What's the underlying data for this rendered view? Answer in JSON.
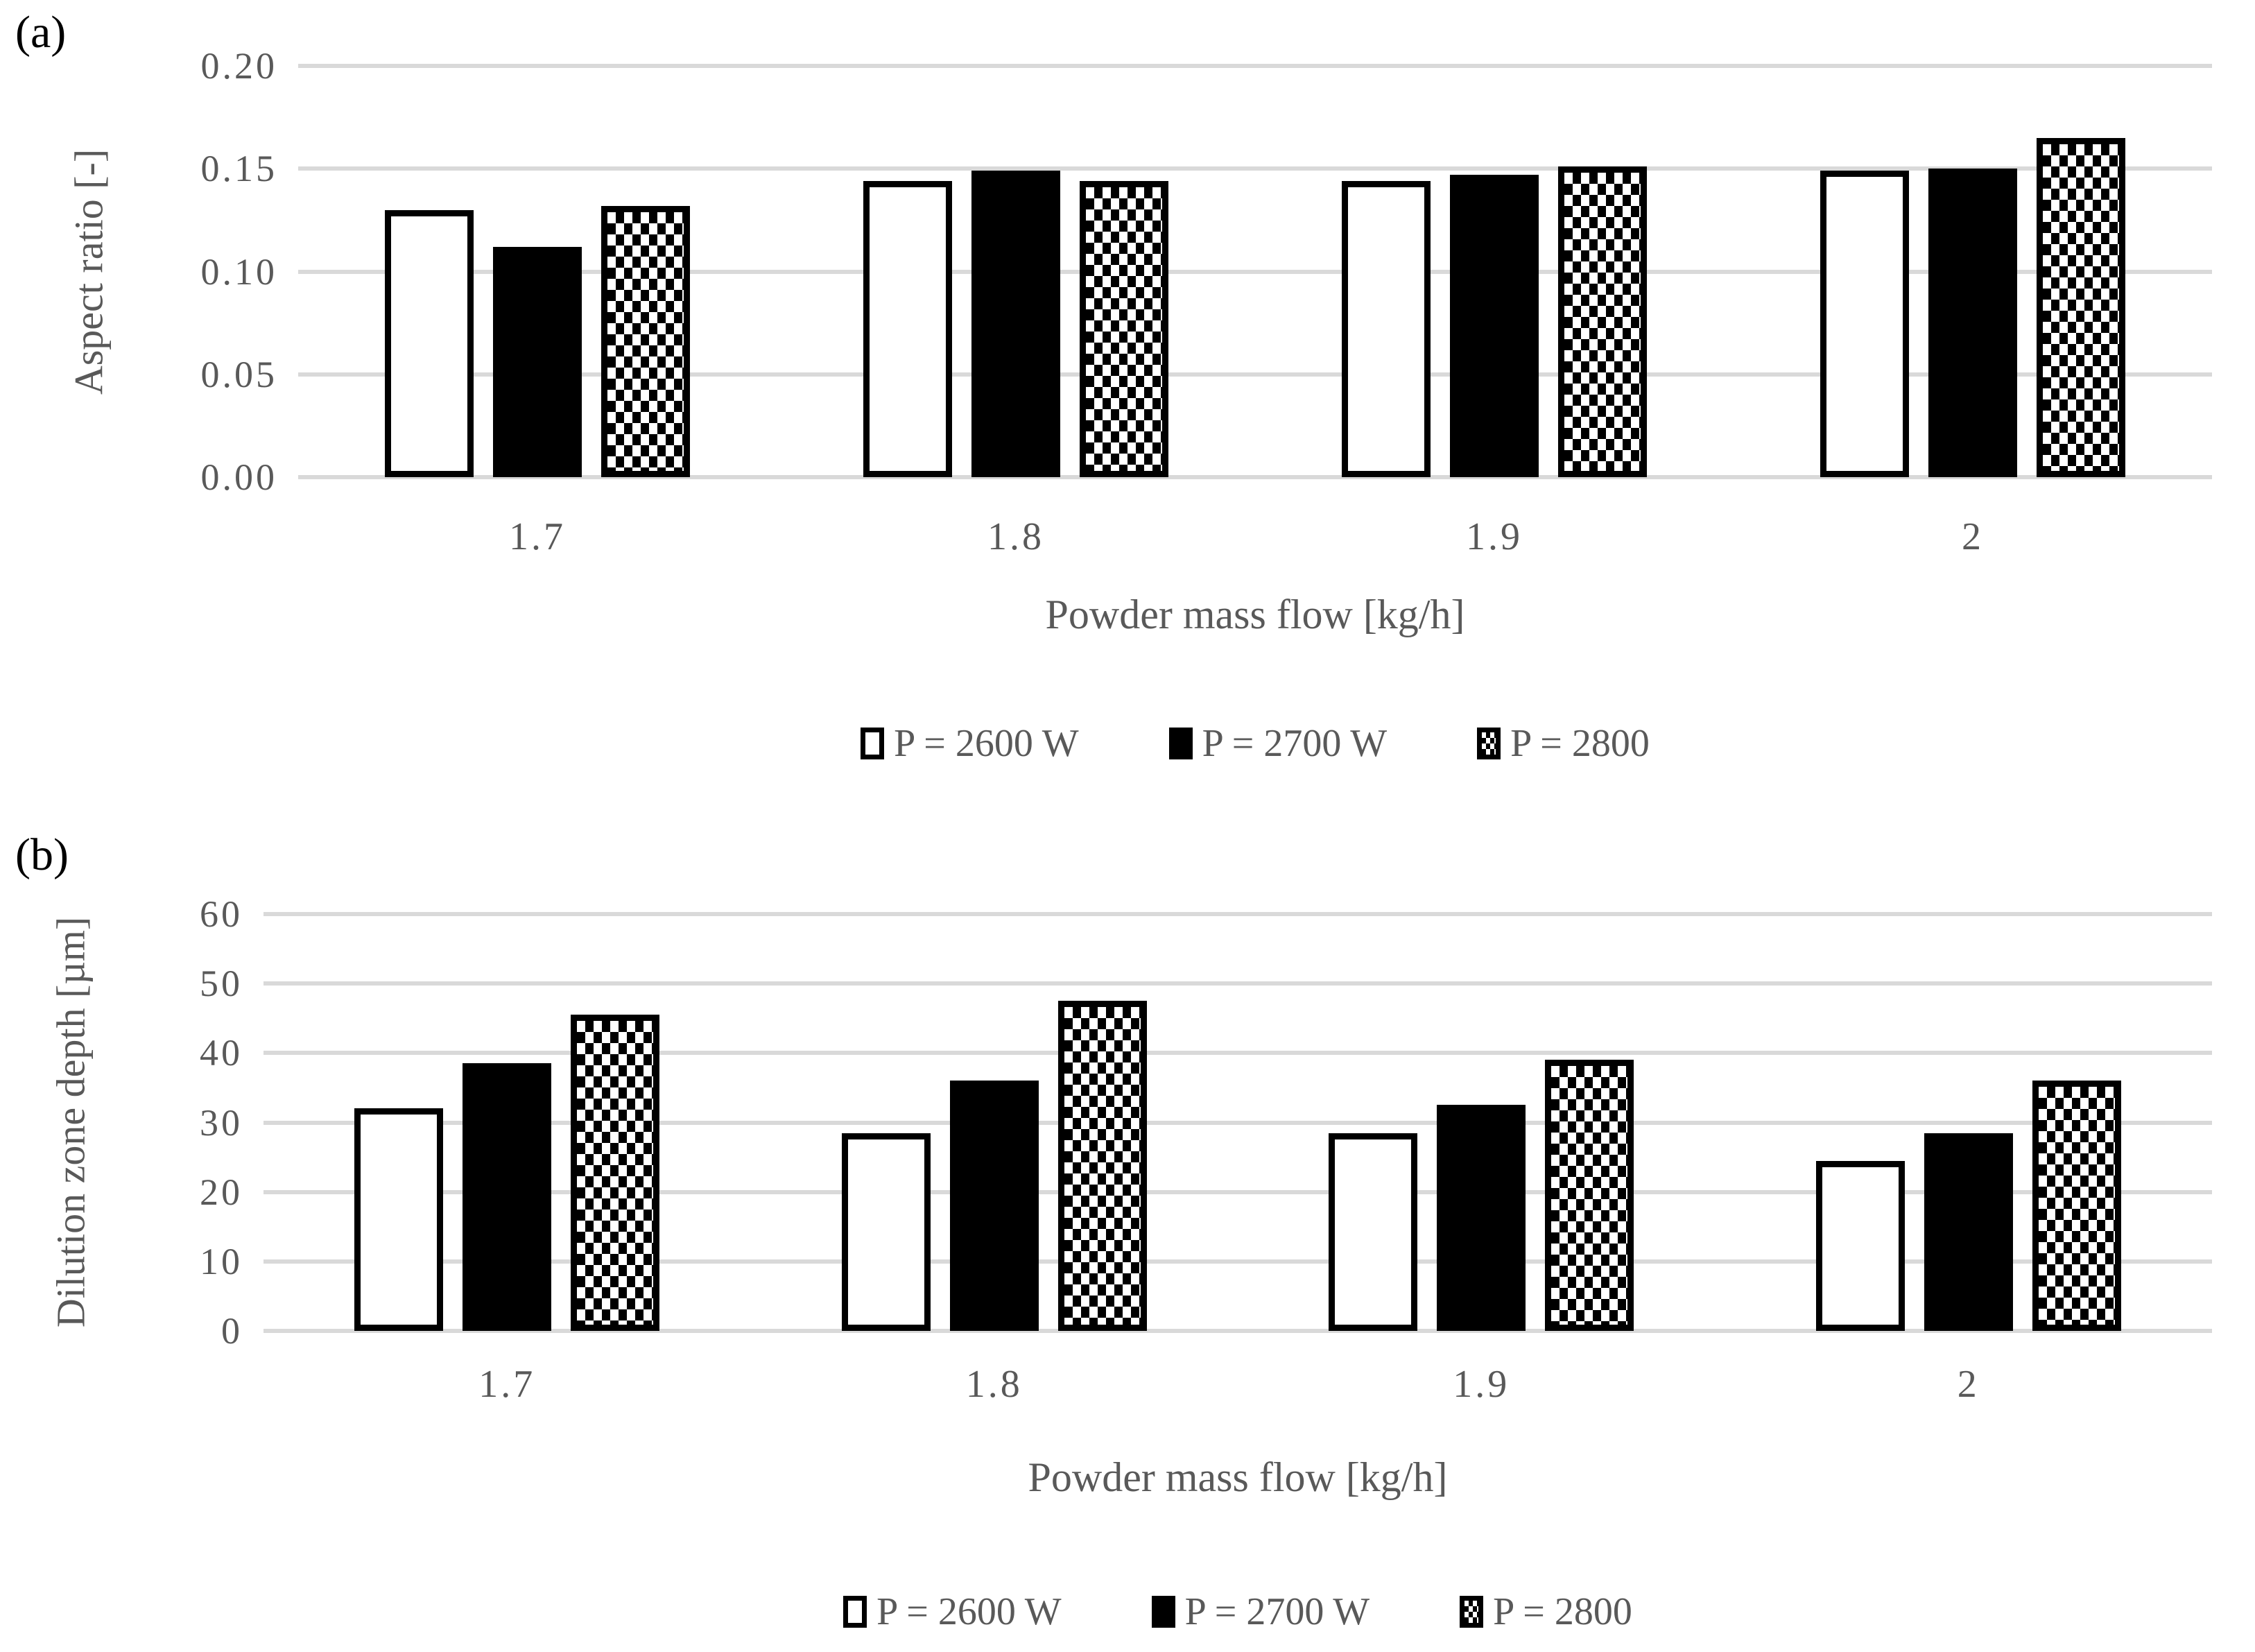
{
  "colors": {
    "text_gray": "#595959",
    "gridline_gray": "#d9d9d9",
    "bar_black": "#000000",
    "bar_white_fill": "#ffffff",
    "bar_border": "#000000"
  },
  "chart_data": [
    {
      "type": "bar",
      "panel_label": "(a)",
      "title": "",
      "categories": [
        "1.7",
        "1.8",
        "1.9",
        "2"
      ],
      "series": [
        {
          "name": "P = 2600 W",
          "pattern": "white",
          "values": [
            0.13,
            0.144,
            0.144,
            0.149
          ]
        },
        {
          "name": "P = 2700 W",
          "pattern": "solid-black",
          "values": [
            0.112,
            0.149,
            0.147,
            0.15
          ]
        },
        {
          "name": "P = 2800",
          "pattern": "dotted",
          "values": [
            0.132,
            0.144,
            0.151,
            0.165
          ]
        }
      ],
      "xlabel": "Powder mass flow [kg/h]",
      "ylabel": "Aspect ratio [-]",
      "ylim": [
        0,
        0.2
      ],
      "y_ticks": [
        "0.00",
        "0.05",
        "0.10",
        "0.15",
        "0.20"
      ],
      "grid": "horizontal",
      "legend_position": "bottom"
    },
    {
      "type": "bar",
      "panel_label": "(b)",
      "title": "",
      "categories": [
        "1.7",
        "1.8",
        "1.9",
        "2"
      ],
      "series": [
        {
          "name": "P = 2600 W",
          "pattern": "white",
          "values": [
            32,
            28.5,
            28.5,
            24.5
          ]
        },
        {
          "name": "P = 2700 W",
          "pattern": "solid-black",
          "values": [
            38.5,
            36,
            32.5,
            28.5
          ]
        },
        {
          "name": "P = 2800",
          "pattern": "dotted",
          "values": [
            45.5,
            47.5,
            39,
            36
          ]
        }
      ],
      "xlabel": "Powder mass flow [kg/h]",
      "ylabel": "Dilution zone depth [µm]",
      "ylim": [
        0,
        60
      ],
      "y_ticks": [
        "0",
        "10",
        "20",
        "30",
        "40",
        "50",
        "60"
      ],
      "grid": "horizontal",
      "legend_position": "bottom"
    }
  ]
}
